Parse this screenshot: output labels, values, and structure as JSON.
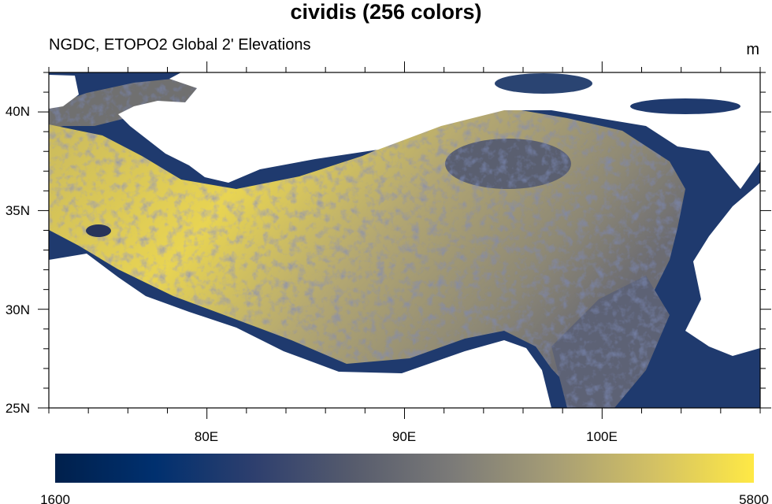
{
  "title": "cividis (256 colors)",
  "subtitle_left": "NGDC, ETOPO2 Global 2' Elevations",
  "subtitle_right": "m",
  "map": {
    "lon_range": [
      72,
      108
    ],
    "lat_range": [
      25,
      42
    ],
    "lon_ticks": [
      {
        "value": 80,
        "label": "80E"
      },
      {
        "value": 90,
        "label": "90E"
      },
      {
        "value": 100,
        "label": "100E"
      }
    ],
    "lat_ticks": [
      {
        "value": 25,
        "label": "25N"
      },
      {
        "value": 30,
        "label": "30N"
      },
      {
        "value": 35,
        "label": "35N"
      },
      {
        "value": 40,
        "label": "40N"
      }
    ],
    "lon_minor_step": 2,
    "lat_minor_step": 1
  },
  "colorbar": {
    "min_label": "1600",
    "max_label": "5800",
    "colors": [
      "#00204c",
      "#00306f",
      "#2e3f6e",
      "#575c6d",
      "#7c7b78",
      "#a69d75",
      "#d3c164",
      "#ffe945"
    ]
  }
}
